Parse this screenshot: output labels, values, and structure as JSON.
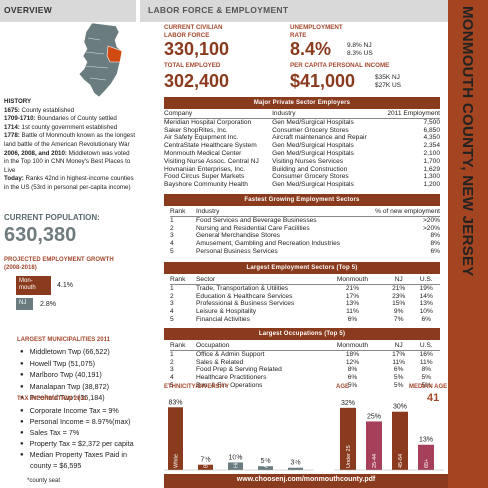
{
  "overview": {
    "title": "OVERVIEW"
  },
  "header": {
    "title": "LABOR FORCE & EMPLOYMENT",
    "vertical_title": "MONMOUTH COUNTY, NEW JERSEY"
  },
  "history": {
    "heading": "HISTORY",
    "entries": [
      {
        "year": "1675:",
        "text": " County established"
      },
      {
        "year": "1709-1710:",
        "text": " Boundaries of County settled"
      },
      {
        "year": "1714:",
        "text": " 1st county government established"
      },
      {
        "year": "1778:",
        "text": " Battle of Monmouth known as the longest land battle of the American Revolutionary War"
      },
      {
        "year": "2006, 2008, and 2010:",
        "text": " Middletown was voted in the Top 100 in CNN Money's Best Places to Live"
      },
      {
        "year": "Today:",
        "text": " Ranks 42nd in highest-income counties in the US (53rd in personal per-capita income)"
      }
    ]
  },
  "population": {
    "label": "CURRENT POPULATION:",
    "value": "630,380"
  },
  "projected": {
    "label_line1": "PROJECTED EMPLOYMENT GROWTH",
    "label_line2": "(2008-2018)",
    "monmouth_label": "Mon-mouth",
    "monmouth_value": "4.1%",
    "nj_label": "NJ",
    "nj_value": "2.8%",
    "monmouth_pct": 4.1,
    "nj_pct": 2.8
  },
  "municipalities": {
    "label": "LARGEST MUNICIPALITIES 2011",
    "items": [
      "Middletown Twp (66,522)",
      "Howell Twp (51,075)",
      "Marlboro Twp (40,191)",
      "Manalapan Twp (38,872)",
      "Freehold Twp* (36,184)"
    ]
  },
  "tax": {
    "label": "TAX INFORMATION 2011",
    "items": [
      "Corporate Income Tax = 9%",
      "Personal Income = 8.97%(max)",
      "Sales Tax = 7%",
      "Property Tax = $2,372 per capita",
      "Median Property Taxes Paid in"
    ],
    "continuation": "county = $6,595"
  },
  "footnote": "*county seat",
  "stats": {
    "labor_force_label1": "CURRENT CIVILIAN",
    "labor_force_label2": "LABOR FORCE",
    "labor_force_value": "330,100",
    "unemployment_label1": "UNEMPLOYMENT",
    "unemployment_label2": "RATE",
    "unemployment_value": "8.4%",
    "unemployment_nj": "9.8% NJ",
    "unemployment_us": "8.3% US",
    "employed_label": "TOTAL EMPLOYED",
    "employed_value": "302,400",
    "income_label": "PER CAPITA PERSONAL INCOME",
    "income_value": "$41,000",
    "income_nj": "$35K NJ",
    "income_us": "$27K US"
  },
  "employers": {
    "title": "Major Private Sector Employers",
    "columns": [
      "Company",
      "Industry",
      "2011 Employment"
    ],
    "rows": [
      [
        "Meridian Hospital Corporation",
        "Gen Med/Surgical Hospitals",
        "7,500"
      ],
      [
        "Saker ShopRites, Inc.",
        "Consumer Grocery Stores",
        "6,850"
      ],
      [
        "Air Safety Equipment Inc.",
        "Aircraft maintenance and Repair",
        "4,350"
      ],
      [
        "CentraState Healthcare System",
        "Gen Med/Surgical Hospitals",
        "2,354"
      ],
      [
        "Monmouth Medical Center",
        "Gen Med/Surgical Hospitals",
        "2,100"
      ],
      [
        "Visiting Nurse Assoc. Central NJ",
        "Visiting Nurses Services",
        "1,700"
      ],
      [
        "Hovnanian Enterprises, Inc.",
        "Building and Construction",
        "1,629"
      ],
      [
        "Food Circus Super Markets",
        "Consumer Grocery Stores",
        "1,300"
      ],
      [
        "Bayshore Community Health",
        "Gen Med/Surgical Hospitals",
        "1,200"
      ]
    ]
  },
  "fastest": {
    "title": "Fastest Growing Employment Sectors",
    "columns": [
      "Rank",
      "Industry",
      "% of new employment"
    ],
    "rows": [
      [
        "1",
        "Food Services and Beverage Businesses",
        ">20%"
      ],
      [
        "2",
        "Nursing and Residential Care Facilities",
        ">20%"
      ],
      [
        "3",
        "General Merchandise Stores",
        "8%"
      ],
      [
        "4",
        "Amusement, Gambling and Recreation Industries",
        "8%"
      ],
      [
        "5",
        "Personal Business Services",
        "6%"
      ]
    ]
  },
  "sectors": {
    "title": "Largest Employment Sectors (Top 5)",
    "columns": [
      "Rank",
      "Sector",
      "Monmouth",
      "NJ",
      "U.S."
    ],
    "rows": [
      [
        "1",
        "Trade, Transportation & Utilities",
        "21%",
        "21%",
        "19%"
      ],
      [
        "2",
        "Education & Healthcare Services",
        "17%",
        "23%",
        "14%"
      ],
      [
        "3",
        "Professional & Business Services",
        "13%",
        "15%",
        "13%"
      ],
      [
        "4",
        "Leisure & Hospitality",
        "11%",
        "9%",
        "10%"
      ],
      [
        "5",
        "Financial Activities",
        "6%",
        "7%",
        "6%"
      ]
    ]
  },
  "occupations": {
    "title": "Largest Occupations (Top 5)",
    "columns": [
      "Rank",
      "Occupation",
      "Monmouth",
      "NJ",
      "U.S."
    ],
    "rows": [
      [
        "1",
        "Office & Admin Support",
        "18%",
        "17%",
        "16%"
      ],
      [
        "2",
        "Sales & Related",
        "12%",
        "11%",
        "11%"
      ],
      [
        "3",
        "Food Prep & Serving Related",
        "8%",
        "6%",
        "8%"
      ],
      [
        "4",
        "Healthcare Practitioners",
        "6%",
        "5%",
        "5%"
      ],
      [
        "5",
        "Bus. & Fin. Operations",
        "5%",
        "5%",
        "5%"
      ]
    ]
  },
  "chart_data": [
    {
      "type": "bar",
      "title": "ETHNICITY/DIVERSITY",
      "categories": [
        "White",
        "Black",
        "Hispanic/ Latino",
        "Asian",
        "Other"
      ],
      "values": [
        83,
        7,
        10,
        5,
        3
      ],
      "labels": [
        "83%",
        "7%",
        "10%",
        "5%",
        "3%"
      ],
      "colors": [
        "#8a3a1d",
        "#8a3a1d",
        "#6a7c80",
        "#6a7c80",
        "#6a7c80"
      ],
      "ylim": [
        0,
        90
      ]
    },
    {
      "type": "bar",
      "title": "AGE",
      "median_label": "MEDIAN AGE",
      "median_value": "41",
      "categories": [
        "Under 25",
        "25-44",
        "45-64",
        "65+"
      ],
      "values": [
        32,
        25,
        30,
        13
      ],
      "labels": [
        "32%",
        "25%",
        "30%",
        "13%"
      ],
      "colors": [
        "#8a3a1d",
        "#a6405a",
        "#8a3a1d",
        "#a6405a"
      ],
      "ylim": [
        0,
        35
      ]
    }
  ],
  "footer": {
    "url": "www.choosenj.com/monmouthcounty.pdf"
  }
}
